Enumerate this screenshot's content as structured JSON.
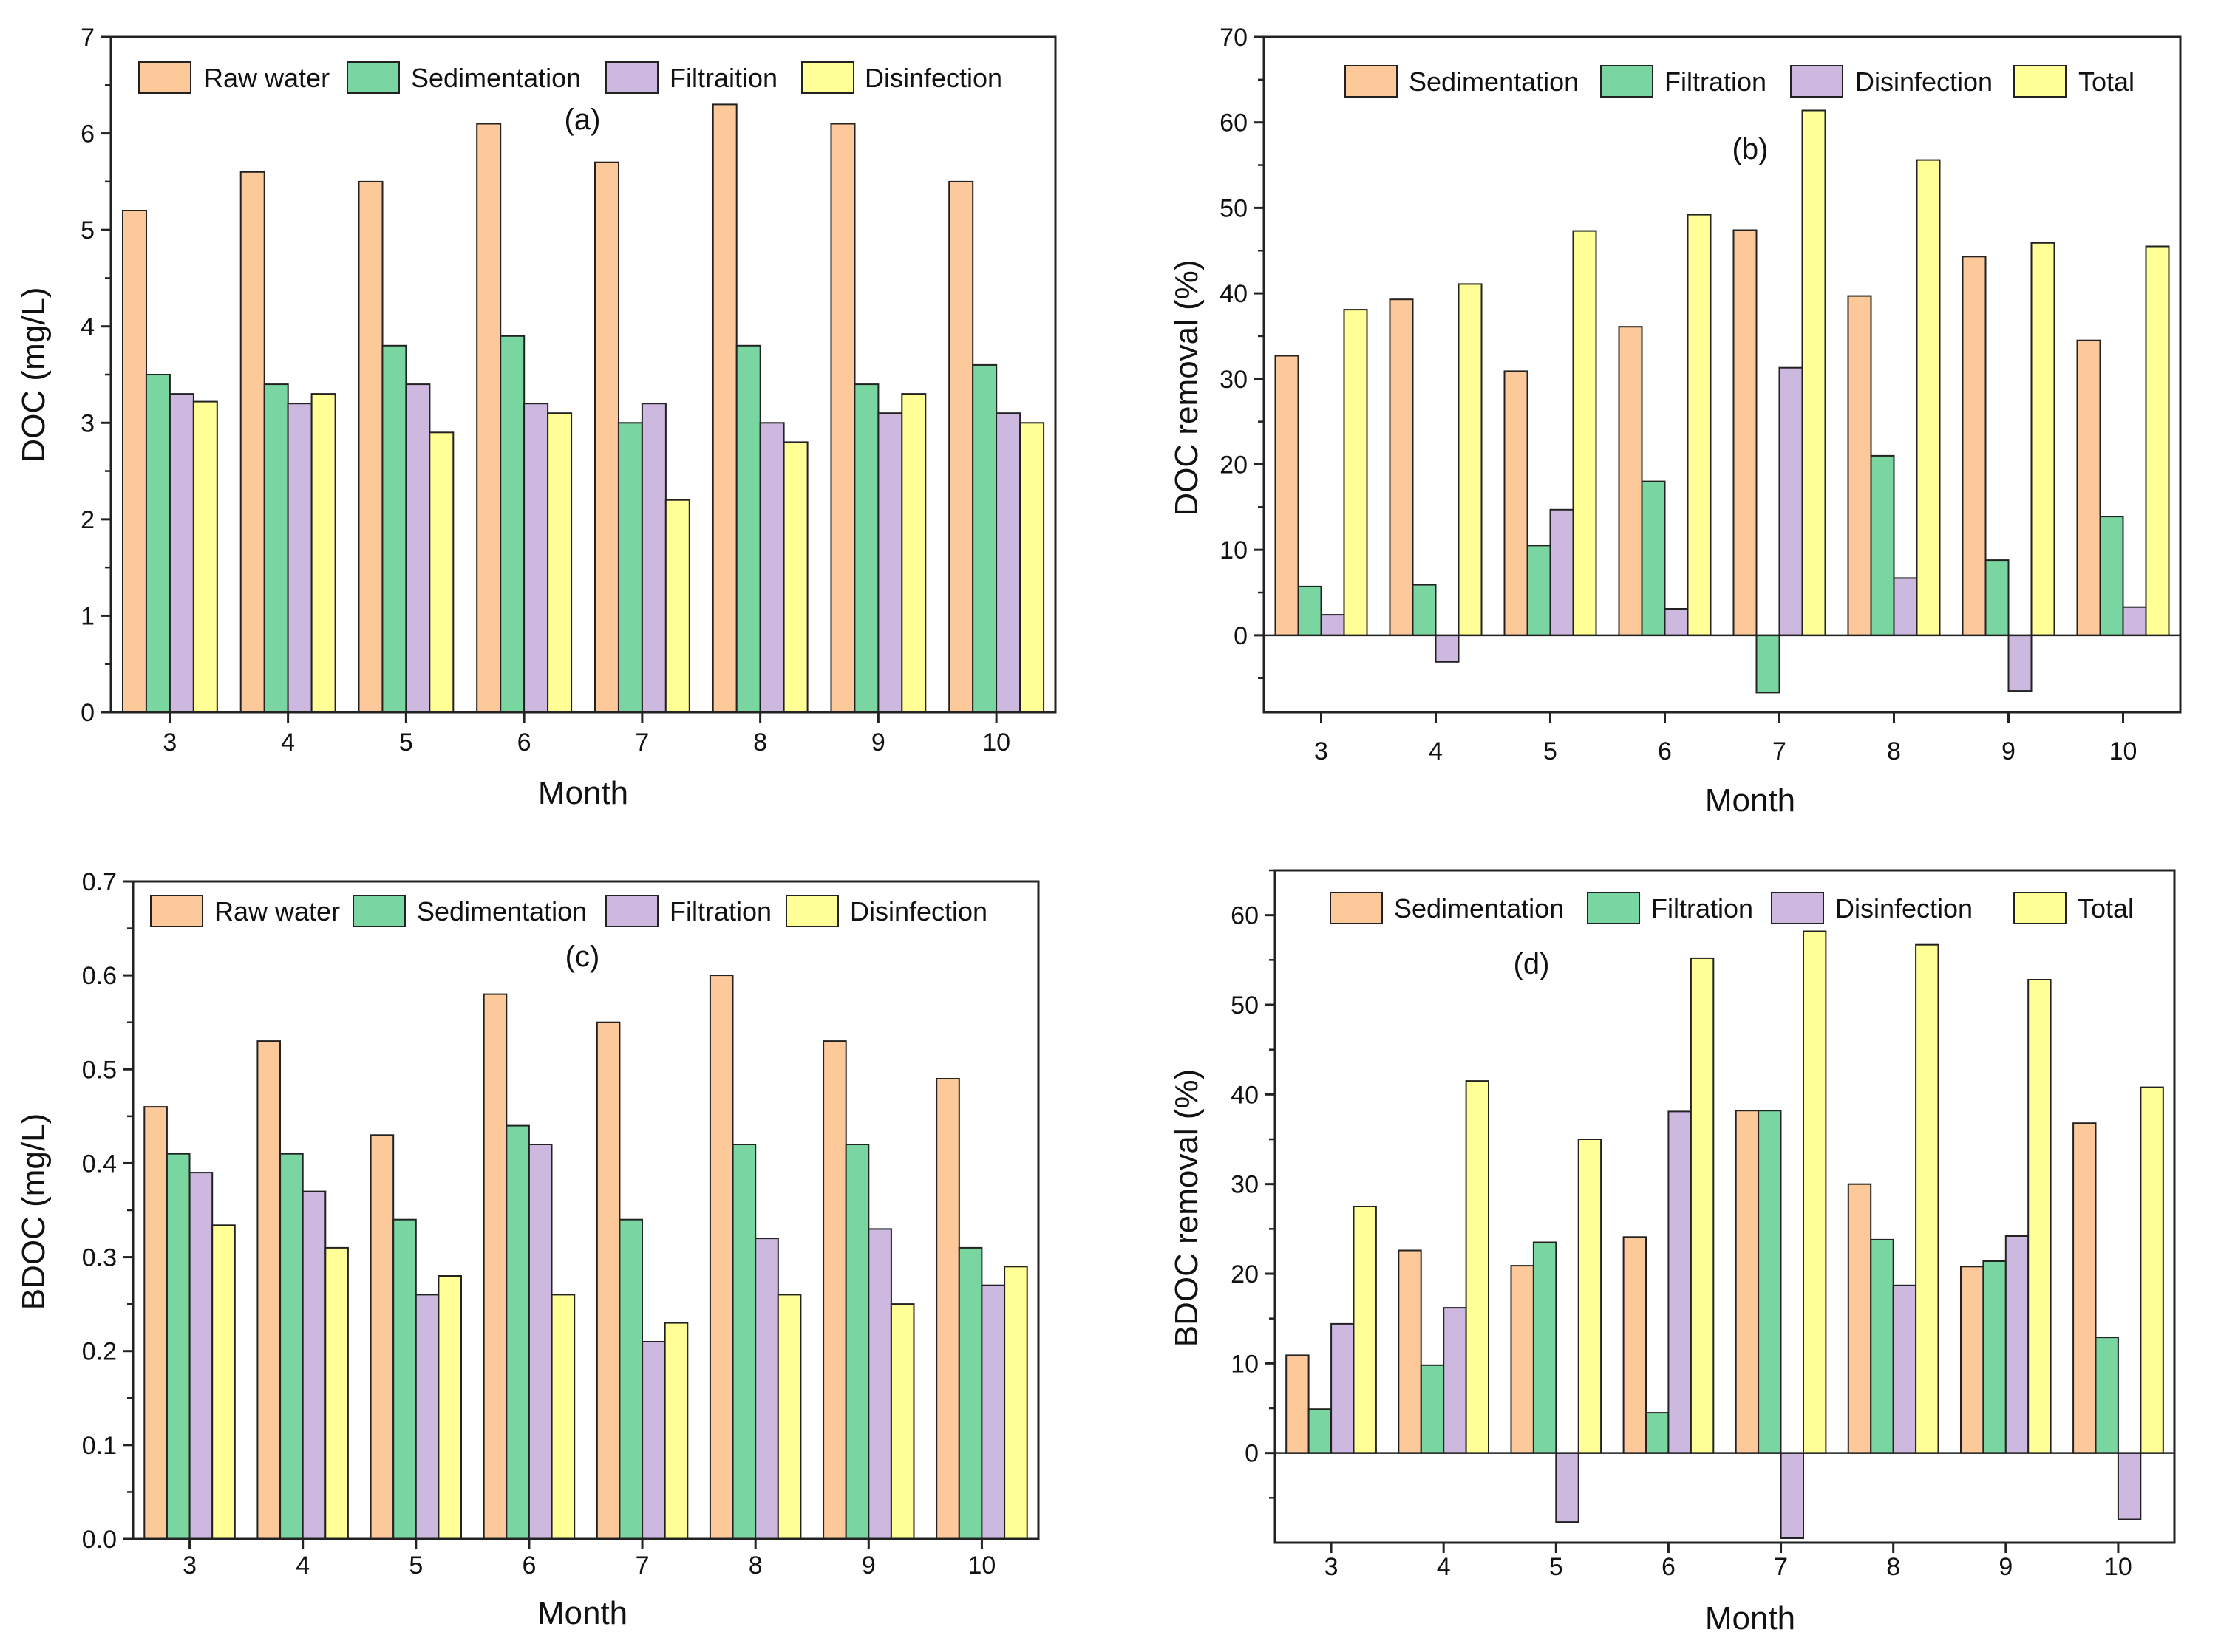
{
  "colors": {
    "orange": "#FDC99A",
    "green": "#79D6A0",
    "purple": "#CDB8DF",
    "yellow": "#FFFF96",
    "stroke": "#222222"
  },
  "chart_data": [
    {
      "id": "a",
      "type": "bar",
      "panel_label": "(a)",
      "xlabel": "Month",
      "ylabel": "DOC (mg/L)",
      "categories": [
        "3",
        "4",
        "5",
        "6",
        "7",
        "8",
        "9",
        "10"
      ],
      "ylim": [
        0,
        7
      ],
      "yticks": [
        0,
        1,
        2,
        3,
        4,
        5,
        6,
        7
      ],
      "ytick_labels": [
        "0",
        "1",
        "2",
        "3",
        "4",
        "5",
        "6",
        "7"
      ],
      "legend_position": "top",
      "series": [
        {
          "name": "Raw water",
          "color_key": "orange",
          "values": [
            5.2,
            5.6,
            5.5,
            6.1,
            5.7,
            6.3,
            6.1,
            5.5
          ]
        },
        {
          "name": "Sedimentation",
          "color_key": "green",
          "values": [
            3.5,
            3.4,
            3.8,
            3.9,
            3.0,
            3.8,
            3.4,
            3.6
          ]
        },
        {
          "name": "Filtraition",
          "color_key": "purple",
          "values": [
            3.3,
            3.2,
            3.4,
            3.2,
            3.2,
            3.0,
            3.1,
            3.1
          ]
        },
        {
          "name": "Disinfection",
          "color_key": "yellow",
          "values": [
            3.22,
            3.3,
            2.9,
            3.1,
            2.2,
            2.8,
            3.3,
            3.0
          ]
        }
      ]
    },
    {
      "id": "b",
      "type": "bar",
      "panel_label": "(b)",
      "xlabel": "Month",
      "ylabel": "DOC removal (%)",
      "categories": [
        "3",
        "4",
        "5",
        "6",
        "7",
        "8",
        "9",
        "10"
      ],
      "ylim": [
        -9,
        70
      ],
      "yticks": [
        0,
        10,
        20,
        30,
        40,
        50,
        60,
        70
      ],
      "ytick_labels": [
        "0",
        "10",
        "20",
        "30",
        "40",
        "50",
        "60",
        "70"
      ],
      "legend_position": "top",
      "series": [
        {
          "name": "Sedimentation",
          "color_key": "orange",
          "values": [
            32.7,
            39.3,
            30.9,
            36.1,
            47.4,
            39.7,
            44.3,
            34.5
          ]
        },
        {
          "name": "Filtration",
          "color_key": "green",
          "values": [
            5.7,
            5.9,
            10.5,
            18.0,
            -6.7,
            21.0,
            8.8,
            13.9
          ]
        },
        {
          "name": "Disinfection",
          "color_key": "purple",
          "values": [
            2.4,
            -3.1,
            14.7,
            3.1,
            31.3,
            6.7,
            -6.5,
            3.3
          ]
        },
        {
          "name": "Total",
          "color_key": "yellow",
          "values": [
            38.1,
            41.1,
            47.3,
            49.2,
            61.4,
            55.6,
            45.9,
            45.5
          ]
        }
      ]
    },
    {
      "id": "c",
      "type": "bar",
      "panel_label": "(c)",
      "xlabel": "Month",
      "ylabel": "BDOC (mg/L)",
      "categories": [
        "3",
        "4",
        "5",
        "6",
        "7",
        "8",
        "9",
        "10"
      ],
      "ylim": [
        0,
        0.7
      ],
      "yticks": [
        0,
        0.1,
        0.2,
        0.3,
        0.4,
        0.5,
        0.6,
        0.7
      ],
      "ytick_labels": [
        "0.0",
        "0.1",
        "0.2",
        "0.3",
        "0.4",
        "0.5",
        "0.6",
        "0.7"
      ],
      "legend_position": "top",
      "series": [
        {
          "name": "Raw water",
          "color_key": "orange",
          "values": [
            0.46,
            0.53,
            0.43,
            0.58,
            0.55,
            0.6,
            0.53,
            0.49
          ]
        },
        {
          "name": "Sedimentation",
          "color_key": "green",
          "values": [
            0.41,
            0.41,
            0.34,
            0.44,
            0.34,
            0.42,
            0.42,
            0.31
          ]
        },
        {
          "name": "Filtration",
          "color_key": "purple",
          "values": [
            0.39,
            0.37,
            0.26,
            0.42,
            0.21,
            0.32,
            0.33,
            0.27
          ]
        },
        {
          "name": "Disinfection",
          "color_key": "yellow",
          "values": [
            0.334,
            0.31,
            0.28,
            0.26,
            0.23,
            0.26,
            0.25,
            0.29
          ]
        }
      ]
    },
    {
      "id": "d",
      "type": "bar",
      "panel_label": "(d)",
      "xlabel": "Month",
      "ylabel": "BDOC removal (%)",
      "categories": [
        "3",
        "4",
        "5",
        "6",
        "7",
        "8",
        "9",
        "10"
      ],
      "ylim": [
        -10,
        65
      ],
      "yticks": [
        0,
        10,
        20,
        30,
        40,
        50,
        60
      ],
      "ytick_labels": [
        "0",
        "10",
        "20",
        "30",
        "40",
        "50",
        "60"
      ],
      "legend_position": "top",
      "series": [
        {
          "name": "Sedimentation",
          "color_key": "orange",
          "values": [
            10.9,
            22.6,
            20.9,
            24.1,
            38.2,
            30.0,
            20.8,
            36.8
          ]
        },
        {
          "name": "Filtration",
          "color_key": "green",
          "values": [
            4.9,
            9.8,
            23.5,
            4.5,
            38.2,
            23.8,
            21.4,
            12.9
          ]
        },
        {
          "name": "Disinfection",
          "color_key": "purple",
          "values": [
            14.4,
            16.2,
            -7.7,
            38.1,
            -9.5,
            18.7,
            24.2,
            -7.4
          ]
        },
        {
          "name": "Total",
          "color_key": "yellow",
          "values": [
            27.5,
            41.5,
            35.0,
            55.2,
            58.2,
            56.7,
            52.8,
            40.8
          ]
        }
      ]
    }
  ]
}
